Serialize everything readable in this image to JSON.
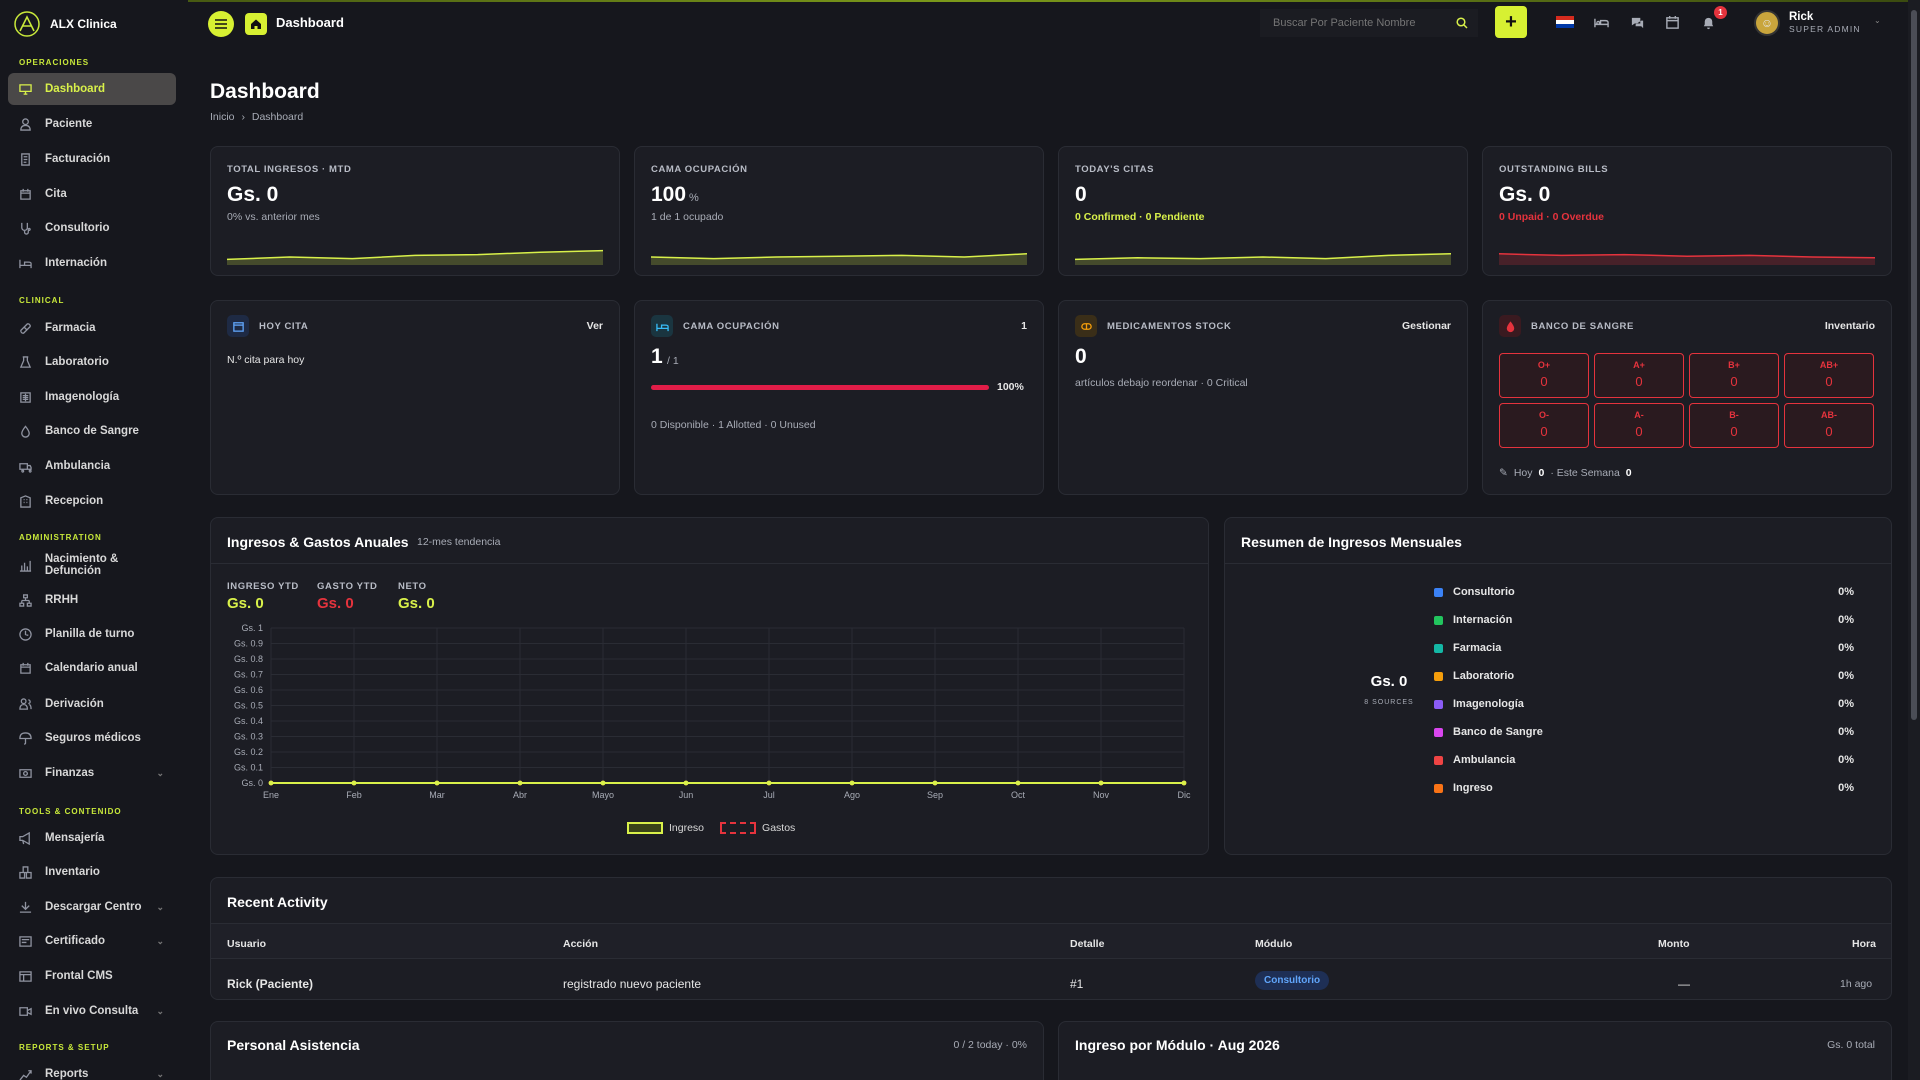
{
  "brand": {
    "name": "ALX Clinica"
  },
  "sidebar": {
    "sections": [
      {
        "label": "OPERACIONES"
      },
      {
        "label": "CLINICAL"
      },
      {
        "label": "ADMINISTRATION"
      },
      {
        "label": "TOOLS & CONTENIDO"
      },
      {
        "label": "REPORTS & SETUP"
      }
    ],
    "items": [
      {
        "label": "Dashboard",
        "icon": "monitor-icon"
      },
      {
        "label": "Paciente",
        "icon": "user-icon"
      },
      {
        "label": "Facturación",
        "icon": "invoice-icon"
      },
      {
        "label": "Cita",
        "icon": "calendar-icon"
      },
      {
        "label": "Consultorio",
        "icon": "stethoscope-icon"
      },
      {
        "label": "Internación",
        "icon": "bed-icon"
      },
      {
        "label": "Farmacia",
        "icon": "pill-icon"
      },
      {
        "label": "Laboratorio",
        "icon": "flask-icon"
      },
      {
        "label": "Imagenología",
        "icon": "xray-icon"
      },
      {
        "label": "Banco de Sangre",
        "icon": "blood-drop-icon"
      },
      {
        "label": "Ambulancia",
        "icon": "ambulance-icon"
      },
      {
        "label": "Recepcion",
        "icon": "building-icon"
      },
      {
        "label": "Nacimiento & Defunción",
        "icon": "chart-icon"
      },
      {
        "label": "RRHH",
        "icon": "org-icon"
      },
      {
        "label": "Planilla de turno",
        "icon": "clock-icon"
      },
      {
        "label": "Calendario anual",
        "icon": "calendar-icon"
      },
      {
        "label": "Derivación",
        "icon": "users-icon"
      },
      {
        "label": "Seguros médicos",
        "icon": "umbrella-icon"
      },
      {
        "label": "Finanzas",
        "icon": "money-icon"
      },
      {
        "label": "Mensajería",
        "icon": "megaphone-icon"
      },
      {
        "label": "Inventario",
        "icon": "boxes-icon"
      },
      {
        "label": "Descargar Centro",
        "icon": "download-icon"
      },
      {
        "label": "Certificado",
        "icon": "certificate-icon"
      },
      {
        "label": "Frontal CMS",
        "icon": "cms-icon"
      },
      {
        "label": "En vivo Consulta",
        "icon": "video-icon"
      },
      {
        "label": "Reports",
        "icon": "reports-icon"
      }
    ]
  },
  "topbar": {
    "title": "Dashboard",
    "search_placeholder": "Buscar Por Paciente Nombre",
    "notification_count": "1",
    "user_name": "Rick",
    "user_role": "SUPER ADMIN"
  },
  "page": {
    "title": "Dashboard",
    "breadcrumb_home": "Inicio",
    "breadcrumb_sep": "›",
    "breadcrumb_current": "Dashboard"
  },
  "kpis": [
    {
      "label": "TOTAL INGRESOS · MTD",
      "value": "Gs. 0",
      "unit": "",
      "sub": "0% vs. anterior mes",
      "color": "#d9f14a"
    },
    {
      "label": "CAMA OCUPACIÓN",
      "value": "100",
      "unit": "%",
      "sub": "1 de 1 ocupado",
      "color": "#d9f14a"
    },
    {
      "label": "TODAY'S CITAS",
      "value": "0",
      "unit": "",
      "sub": "0 Confirmed · 0 Pendiente",
      "color": "#d9f14a"
    },
    {
      "label": "OUTSTANDING BILLS",
      "value": "Gs. 0",
      "unit": "",
      "sub": "0 Unpaid · 0 Overdue",
      "color": "#e5333d"
    }
  ],
  "cards": {
    "hoy_cita": {
      "title": "HOY CITA",
      "link": "Ver",
      "text": "N.º cita para hoy"
    },
    "cama": {
      "title": "CAMA OCUPACIÓN",
      "count": "1",
      "value": "1",
      "total": "/ 1",
      "progress": 1.0,
      "progress_label": "100%",
      "sub": "0 Disponible · 1 Allotted · 0 Unused"
    },
    "meds": {
      "title": "MEDICAMENTOS STOCK",
      "link": "Gestionar",
      "value": "0",
      "sub": "artículos debajo reordenar · 0 Critical"
    },
    "blood": {
      "title": "BANCO DE SANGRE",
      "link": "Inventario",
      "groups": [
        {
          "t": "O+",
          "v": "0"
        },
        {
          "t": "A+",
          "v": "0"
        },
        {
          "t": "B+",
          "v": "0"
        },
        {
          "t": "AB+",
          "v": "0"
        },
        {
          "t": "O-",
          "v": "0"
        },
        {
          "t": "A-",
          "v": "0"
        },
        {
          "t": "B-",
          "v": "0"
        },
        {
          "t": "AB-",
          "v": "0"
        }
      ],
      "hoy_label": "Hoy",
      "hoy": "0",
      "semana_label": "· Este Semana",
      "semana": "0"
    }
  },
  "annual": {
    "title": "Ingresos & Gastos Anuales",
    "tag": "12-mes tendencia",
    "stats": [
      {
        "label": "INGRESO YTD",
        "value": "Gs. 0",
        "color": "#d9f14a"
      },
      {
        "label": "GASTO YTD",
        "value": "Gs. 0",
        "color": "#e5333d"
      },
      {
        "label": "NETO",
        "value": "Gs. 0",
        "color": "#d9f14a"
      }
    ]
  },
  "chart_data": {
    "type": "line",
    "categories": [
      "Ene",
      "Feb",
      "Mar",
      "Abr",
      "Mayo",
      "Jun",
      "Jul",
      "Ago",
      "Sep",
      "Oct",
      "Nov",
      "Dic"
    ],
    "series": [
      {
        "name": "Ingreso",
        "values": [
          0,
          0,
          0,
          0,
          0,
          0,
          0,
          0,
          0,
          0,
          0,
          0
        ],
        "color": "#d9f14a"
      },
      {
        "name": "Gastos",
        "values": [
          0,
          0,
          0,
          0,
          0,
          0,
          0,
          0,
          0,
          0,
          0,
          0
        ],
        "color": "#e5333d"
      }
    ],
    "yticks": [
      "Gs. 0",
      "Gs. 0.1",
      "Gs. 0.2",
      "Gs. 0.3",
      "Gs. 0.4",
      "Gs. 0.5",
      "Gs. 0.6",
      "Gs. 0.7",
      "Gs. 0.8",
      "Gs. 0.9",
      "Gs. 1"
    ],
    "ylim": [
      0,
      1
    ],
    "grid": true,
    "legend": "bottom"
  },
  "monthly": {
    "title": "Resumen de Ingresos Mensuales",
    "center_value": "Gs. 0",
    "center_sub": "8 SOURCES",
    "rows": [
      {
        "label": "Consultorio",
        "pct": "0%",
        "color": "#3b82f6"
      },
      {
        "label": "Internación",
        "pct": "0%",
        "color": "#22c55e"
      },
      {
        "label": "Farmacia",
        "pct": "0%",
        "color": "#14b8a6"
      },
      {
        "label": "Laboratorio",
        "pct": "0%",
        "color": "#f59e0b"
      },
      {
        "label": "Imagenología",
        "pct": "0%",
        "color": "#8b5cf6"
      },
      {
        "label": "Banco de Sangre",
        "pct": "0%",
        "color": "#d946ef"
      },
      {
        "label": "Ambulancia",
        "pct": "0%",
        "color": "#ef4444"
      },
      {
        "label": "Ingreso",
        "pct": "0%",
        "color": "#f97316"
      }
    ]
  },
  "activity": {
    "title": "Recent Activity",
    "headers": [
      "Usuario",
      "Acción",
      "Detalle",
      "Módulo",
      "Monto",
      "Hora"
    ],
    "rows": [
      {
        "usuario": "Rick (Paciente)",
        "accion": "registrado nuevo paciente",
        "detalle": "#1",
        "modulo": "Consultorio",
        "monto": "—",
        "hora": "1h ago"
      }
    ]
  },
  "personal": {
    "title": "Personal Asistencia",
    "meta": "0 / 2 today · 0%"
  },
  "ingreso_modulo": {
    "title": "Ingreso por Módulo · Aug 2026",
    "meta": "Gs. 0 total"
  }
}
